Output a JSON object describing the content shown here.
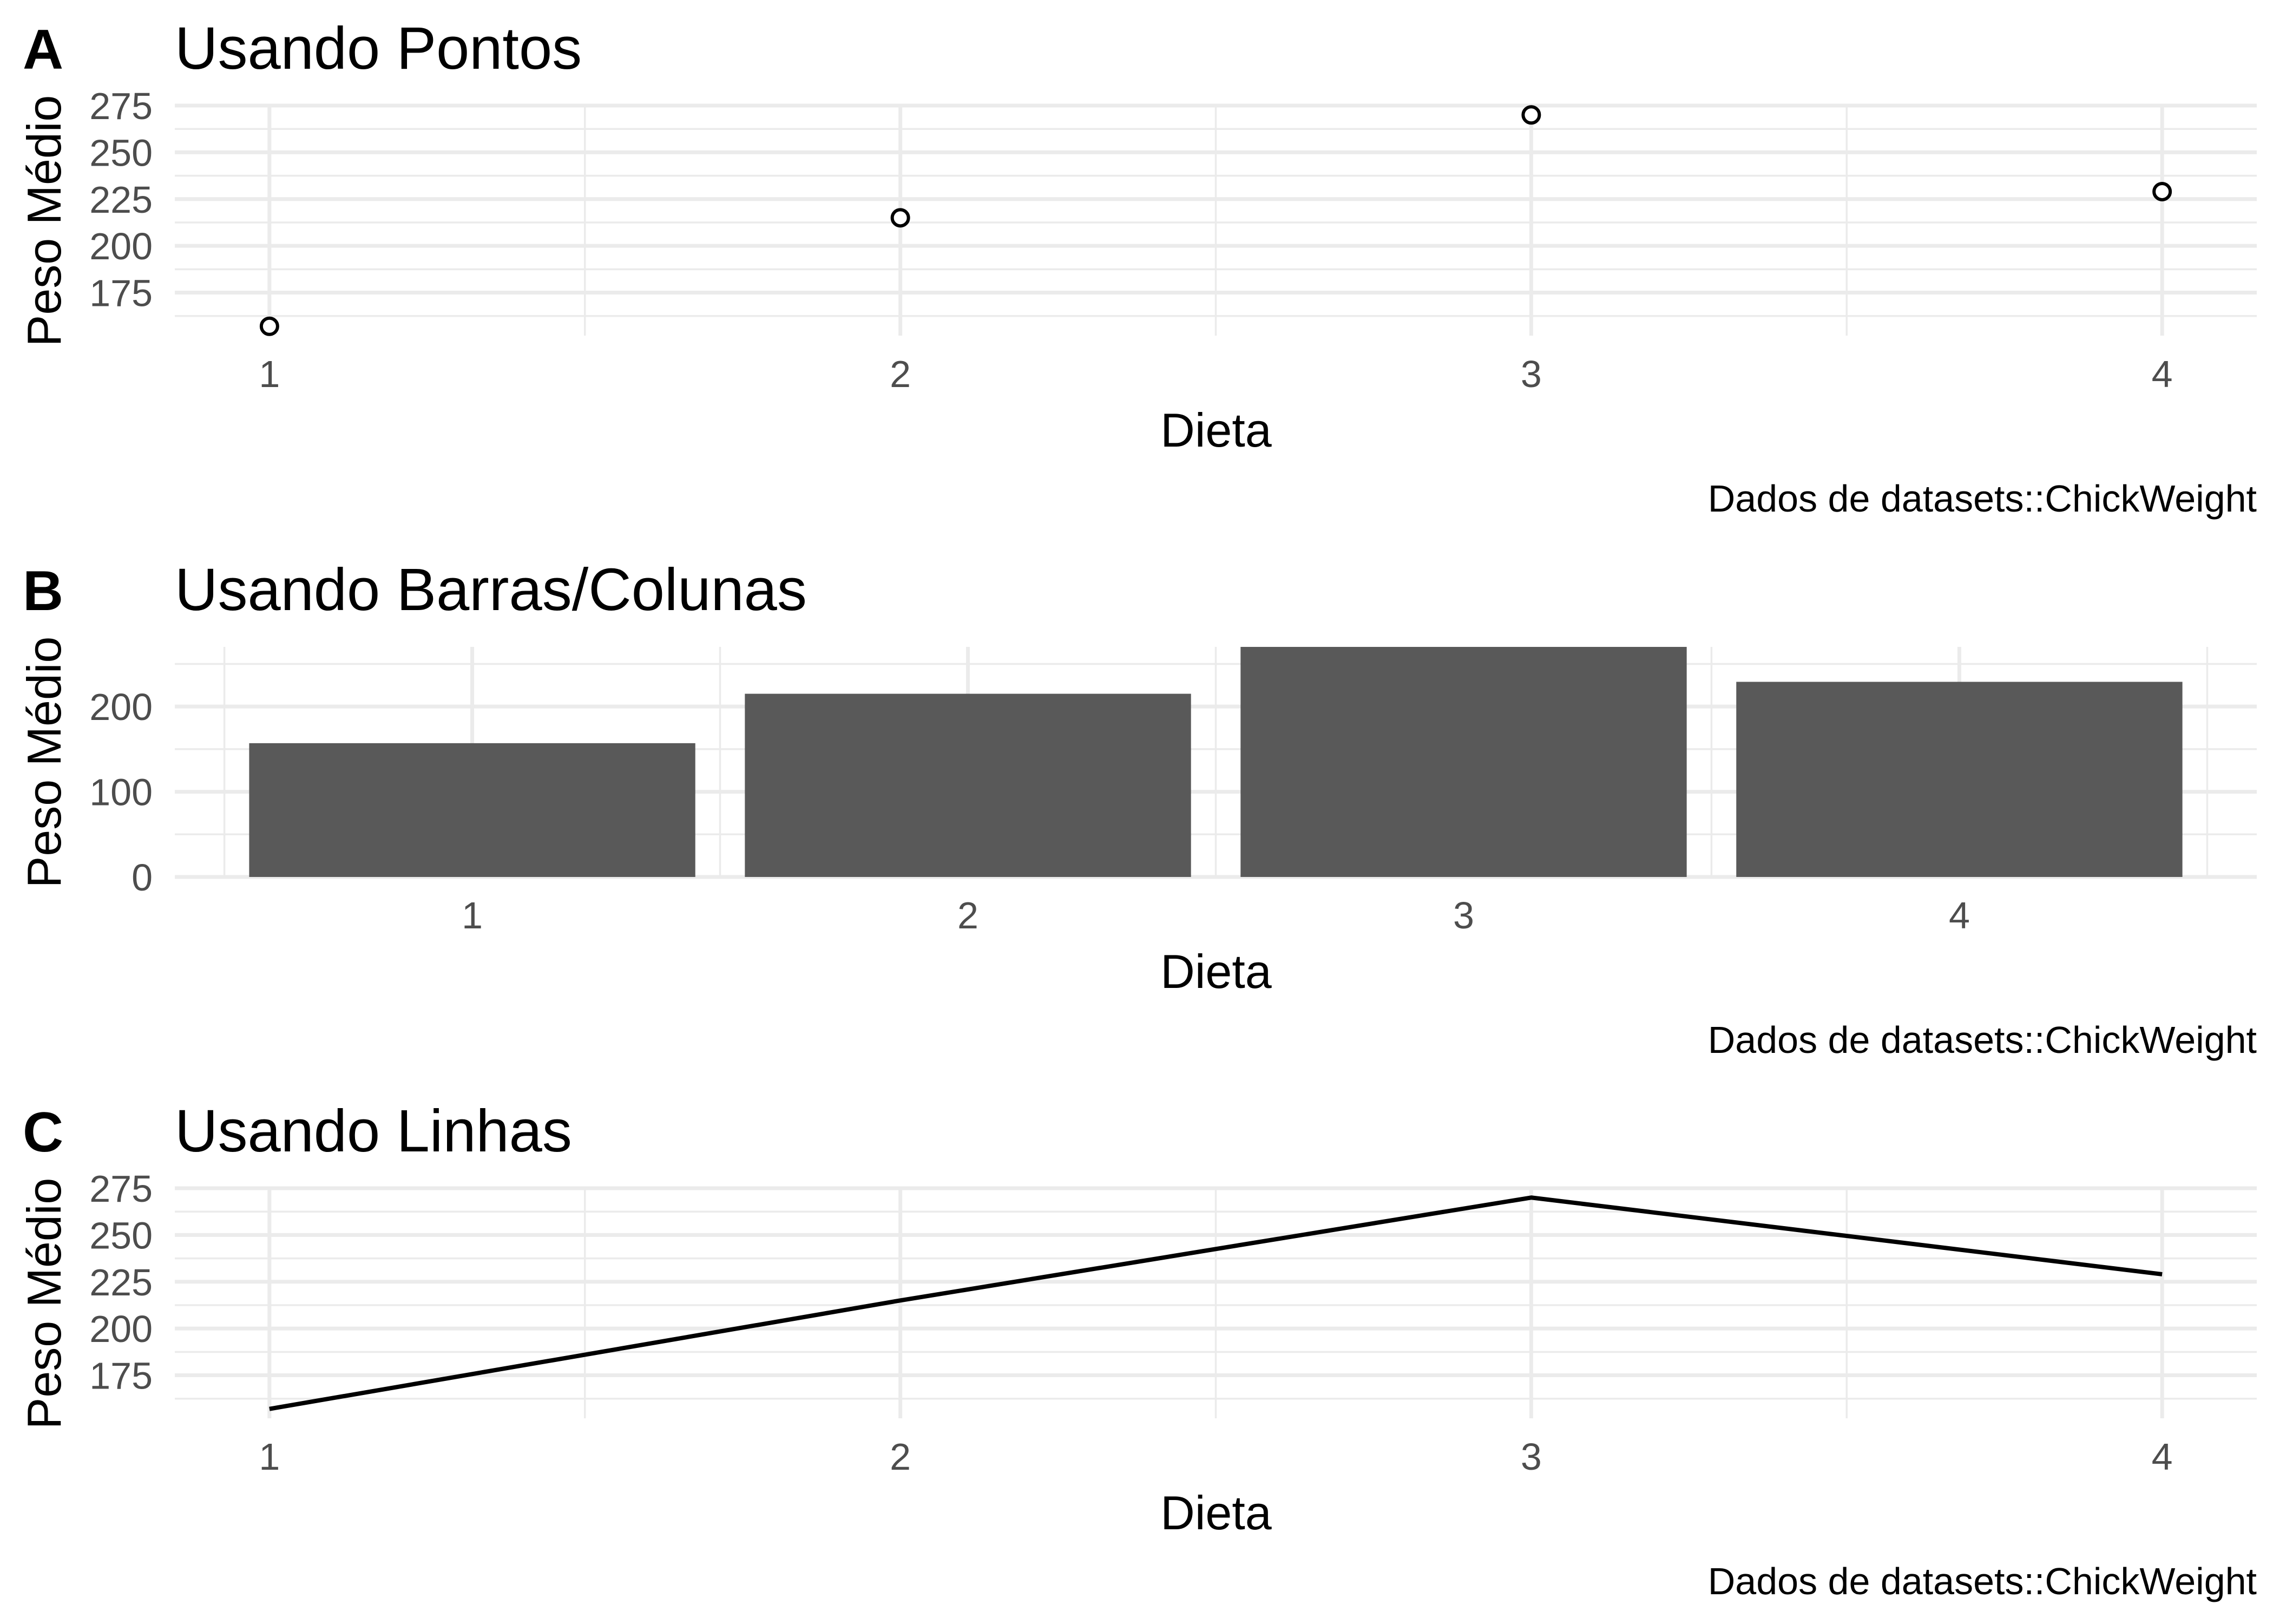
{
  "colors": {
    "background": "#ffffff",
    "grid": "#ebebeb",
    "bar_fill": "#595959",
    "line": "#000000",
    "point": "#000000",
    "tick_text": "#4d4d4d",
    "text": "#000000"
  },
  "chart_data": [
    {
      "id": "A",
      "tag": "A",
      "type": "scatter",
      "title": "Usando Pontos",
      "xlabel": "Dieta",
      "ylabel": "Peso Médio",
      "caption": "Dados de datasets::ChickWeight",
      "categories": [
        "1",
        "2",
        "3",
        "4"
      ],
      "values": [
        157,
        215,
        270,
        229
      ],
      "ylim": [
        152,
        275
      ],
      "yticks": [
        175,
        200,
        225,
        250,
        275
      ],
      "grid": true,
      "point_shape": "open-circle"
    },
    {
      "id": "B",
      "tag": "B",
      "type": "bar",
      "title": "Usando Barras/Colunas",
      "xlabel": "Dieta",
      "ylabel": "Peso Médio",
      "caption": "Dados de datasets::ChickWeight",
      "categories": [
        "1",
        "2",
        "3",
        "4"
      ],
      "values": [
        157,
        215,
        270,
        229
      ],
      "ylim": [
        0,
        270
      ],
      "yticks": [
        0,
        100,
        200
      ],
      "grid": true
    },
    {
      "id": "C",
      "tag": "C",
      "type": "line",
      "title": "Usando Linhas",
      "xlabel": "Dieta",
      "ylabel": "Peso Médio",
      "caption": "Dados de datasets::ChickWeight",
      "categories": [
        "1",
        "2",
        "3",
        "4"
      ],
      "values": [
        157,
        215,
        270,
        229
      ],
      "ylim": [
        152,
        275
      ],
      "yticks": [
        175,
        200,
        225,
        250,
        275
      ],
      "grid": true
    }
  ]
}
